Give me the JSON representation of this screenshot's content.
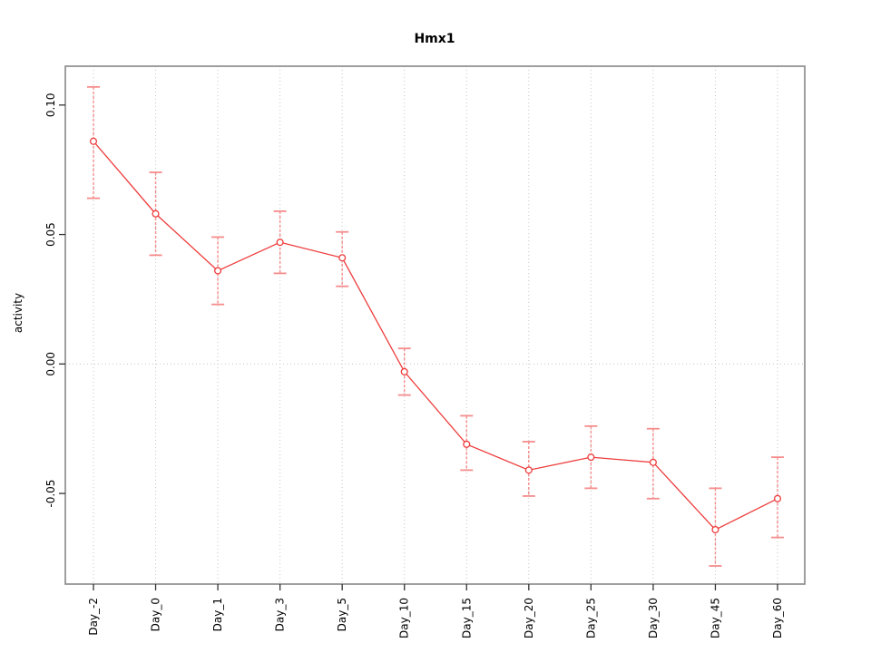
{
  "chart_data": {
    "type": "line",
    "title": "Hmx1",
    "xlabel": "",
    "ylabel": "activity",
    "categories": [
      "Day_-2",
      "Day_0",
      "Day_1",
      "Day_3",
      "Day_5",
      "Day_10",
      "Day_15",
      "Day_20",
      "Day_25",
      "Day_30",
      "Day_45",
      "Day_60"
    ],
    "series": [
      {
        "name": "activity",
        "values": [
          0.086,
          0.058,
          0.036,
          0.047,
          0.041,
          -0.003,
          -0.031,
          -0.041,
          -0.036,
          -0.038,
          -0.064,
          -0.052
        ],
        "lower": [
          0.064,
          0.042,
          0.023,
          0.035,
          0.03,
          -0.012,
          -0.041,
          -0.051,
          -0.048,
          -0.052,
          -0.078,
          -0.067
        ],
        "upper": [
          0.107,
          0.074,
          0.049,
          0.059,
          0.051,
          0.006,
          -0.02,
          -0.03,
          -0.024,
          -0.025,
          -0.048,
          -0.036
        ]
      }
    ],
    "ylim": [
      -0.085,
      0.115
    ],
    "yticks": [
      {
        "value": -0.05,
        "label": "-0.05"
      },
      {
        "value": 0.0,
        "label": "0.00"
      },
      {
        "value": 0.05,
        "label": "0.05"
      },
      {
        "value": 0.1,
        "label": "0.10"
      }
    ],
    "grid": {
      "vertical_at_each_category": true,
      "horizontal_at_value": 0,
      "style": "dotted"
    },
    "legend": "none",
    "colors": {
      "line": "#ee3c3c",
      "point": "#ee3c3c",
      "error_bar": "#f58c8c",
      "grid": "#c6c6c6",
      "axis_border": "#878787",
      "tick_mark": "#333333",
      "text": "#000000"
    }
  }
}
